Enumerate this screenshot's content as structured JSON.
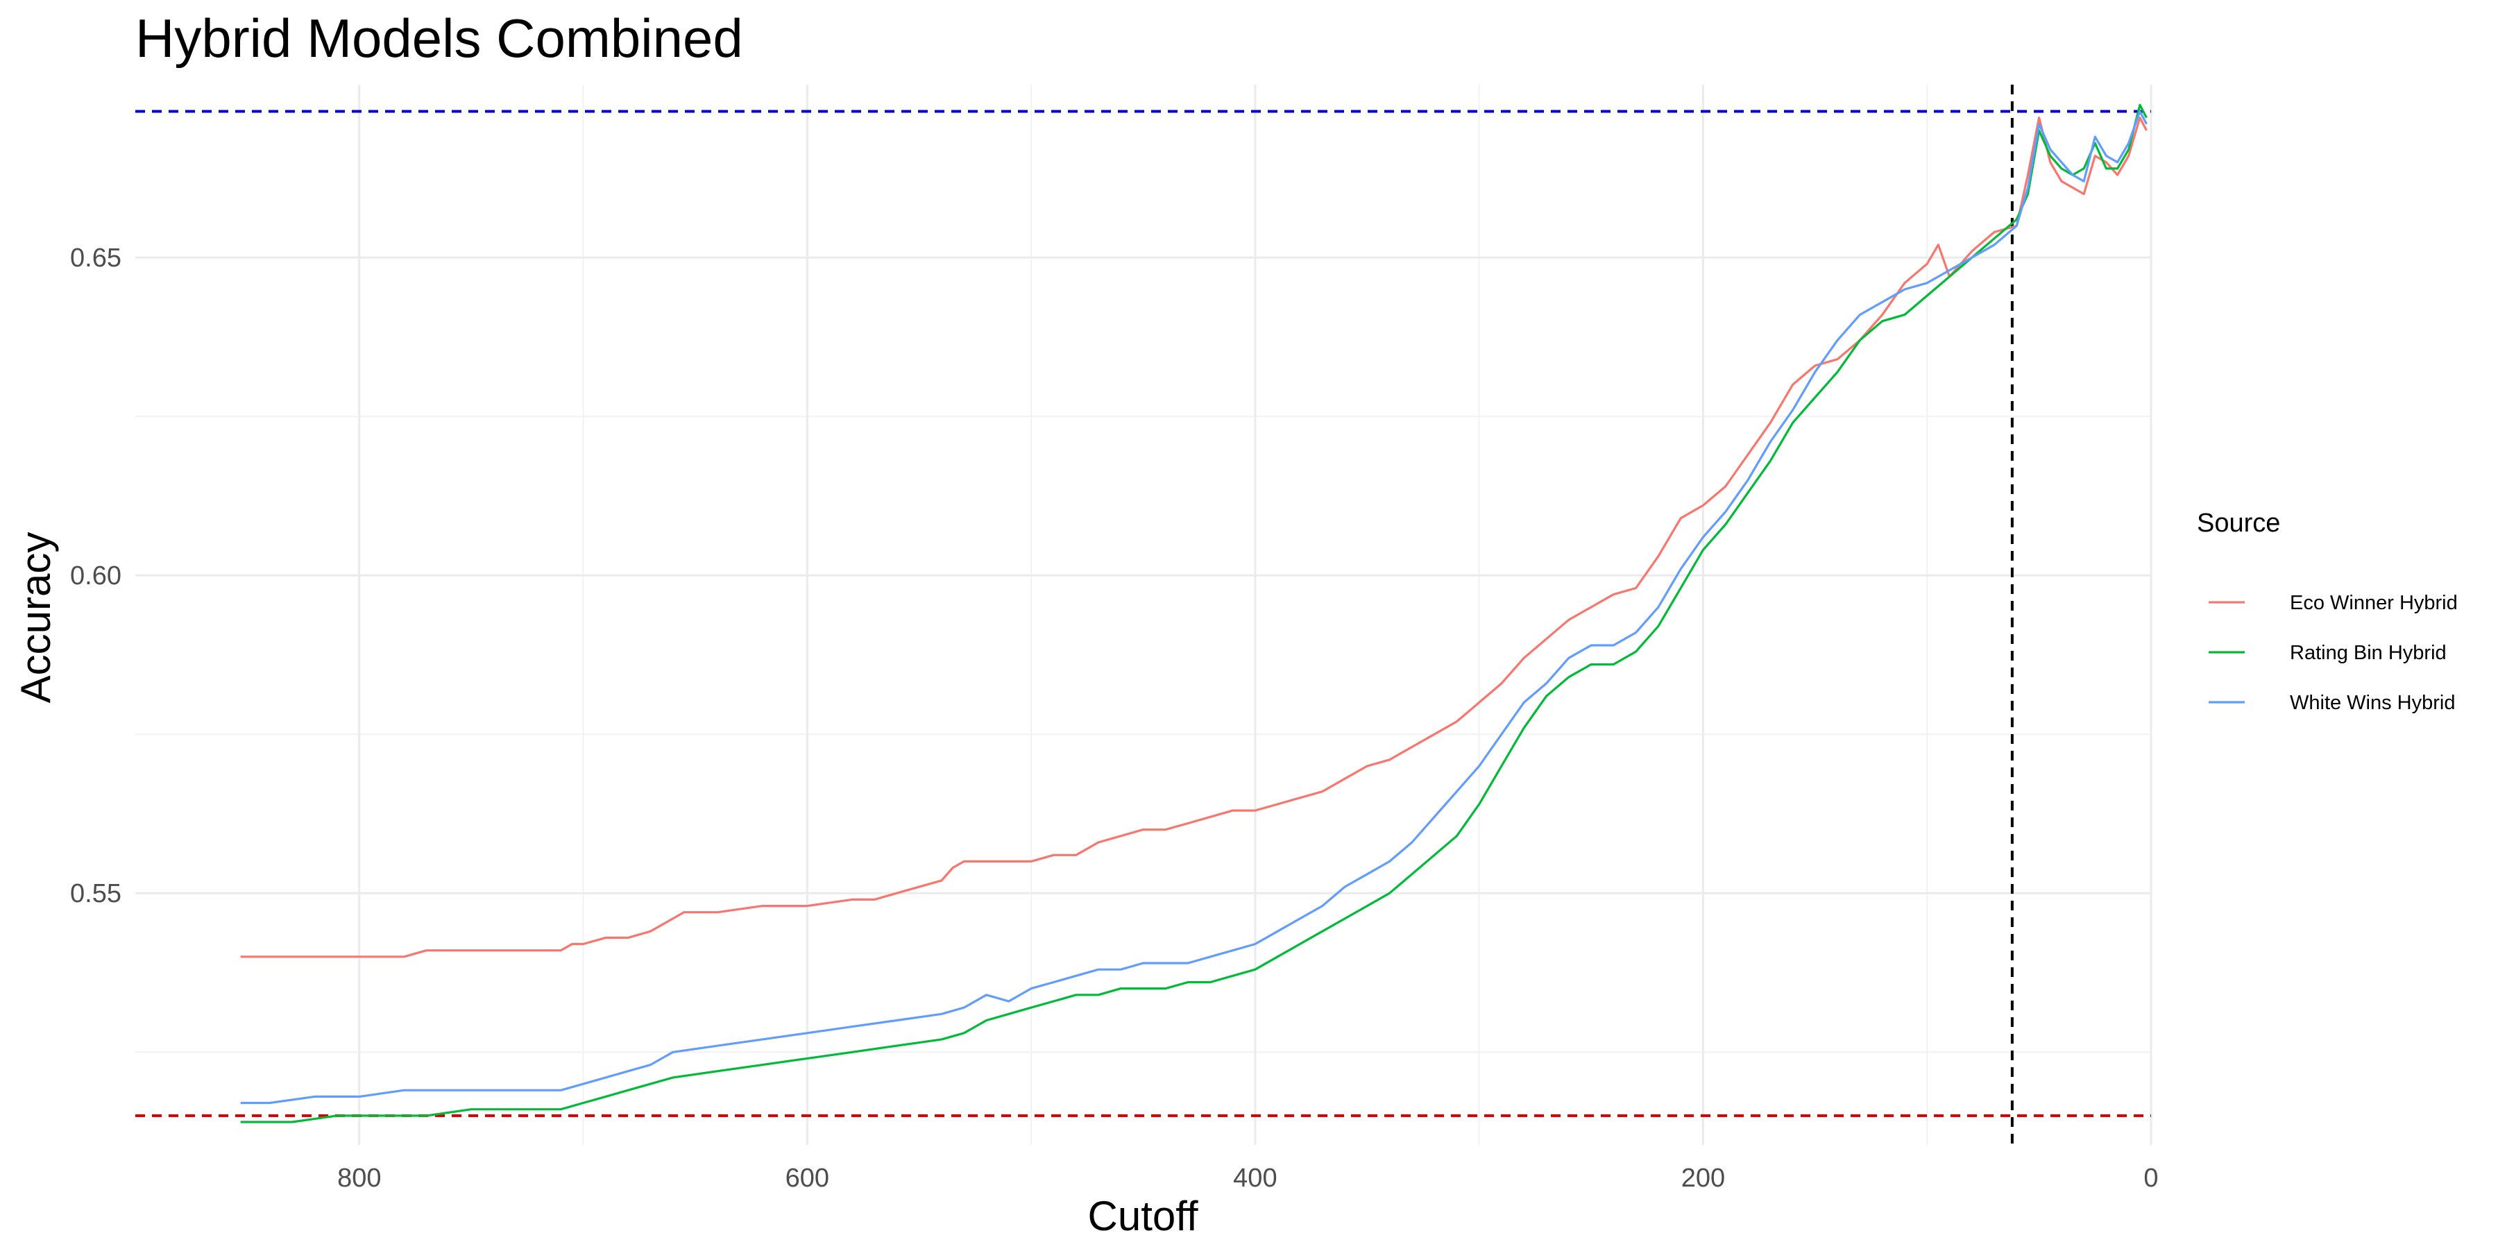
{
  "chart_data": {
    "type": "line",
    "title": "Hybrid Models Combined",
    "xlabel": "Cutoff",
    "ylabel": "Accuracy",
    "x_reversed": true,
    "xlim": [
      0,
      900
    ],
    "ylim": [
      0.5104,
      0.6772
    ],
    "x_ticks": [
      800,
      600,
      400,
      200,
      0
    ],
    "x_tick_labels": [
      "800",
      "600",
      "400",
      "200",
      "0"
    ],
    "x_minor_ticks": [
      700,
      500,
      300,
      100
    ],
    "y_ticks": [
      0.55,
      0.6,
      0.65
    ],
    "y_tick_labels": [
      "0.55",
      "0.60",
      "0.65"
    ],
    "y_minor_ticks": [
      0.525,
      0.575,
      0.625
    ],
    "legend": {
      "title": "Source",
      "position": "right",
      "entries": [
        "Eco Winner Hybrid",
        "Rating Bin Hybrid",
        "White Wins Hybrid"
      ]
    },
    "reference_lines": [
      {
        "orientation": "horizontal",
        "value": 0.673,
        "color": "#0000cc",
        "style": "dashed"
      },
      {
        "orientation": "horizontal",
        "value": 0.515,
        "color": "#cc0000",
        "style": "dashed"
      },
      {
        "orientation": "vertical",
        "value": 62,
        "color": "#000000",
        "style": "dashed"
      }
    ],
    "series": [
      {
        "name": "Eco Winner Hybrid",
        "color": "#F8766D",
        "x": [
          853,
          780,
          770,
          710,
          705,
          700,
          690,
          680,
          670,
          660,
          655,
          650,
          640,
          620,
          600,
          580,
          570,
          560,
          550,
          540,
          535,
          530,
          520,
          500,
          490,
          480,
          470,
          460,
          450,
          440,
          430,
          420,
          410,
          400,
          390,
          380,
          370,
          360,
          350,
          340,
          330,
          320,
          310,
          300,
          290,
          280,
          270,
          260,
          250,
          240,
          230,
          220,
          210,
          200,
          190,
          180,
          170,
          160,
          150,
          140,
          130,
          120,
          110,
          100,
          95,
          90,
          80,
          70,
          60,
          55,
          50,
          45,
          40,
          35,
          30,
          25,
          20,
          15,
          10,
          5,
          2
        ],
        "y": [
          0.54,
          0.54,
          0.541,
          0.541,
          0.542,
          0.542,
          0.543,
          0.543,
          0.544,
          0.546,
          0.547,
          0.547,
          0.547,
          0.548,
          0.548,
          0.549,
          0.549,
          0.55,
          0.551,
          0.552,
          0.554,
          0.555,
          0.555,
          0.555,
          0.556,
          0.556,
          0.558,
          0.559,
          0.56,
          0.56,
          0.561,
          0.562,
          0.563,
          0.563,
          0.564,
          0.565,
          0.566,
          0.568,
          0.57,
          0.571,
          0.573,
          0.575,
          0.577,
          0.58,
          0.583,
          0.587,
          0.59,
          0.593,
          0.595,
          0.597,
          0.598,
          0.603,
          0.609,
          0.611,
          0.614,
          0.619,
          0.624,
          0.63,
          0.633,
          0.634,
          0.637,
          0.641,
          0.646,
          0.649,
          0.652,
          0.647,
          0.651,
          0.654,
          0.655,
          0.663,
          0.672,
          0.665,
          0.662,
          0.661,
          0.66,
          0.666,
          0.665,
          0.663,
          0.666,
          0.672,
          0.67
        ]
      },
      {
        "name": "Rating Bin Hybrid",
        "color": "#00BA38",
        "x": [
          853,
          830,
          810,
          790,
          770,
          750,
          730,
          720,
          710,
          700,
          690,
          680,
          670,
          660,
          640,
          620,
          600,
          580,
          560,
          540,
          530,
          520,
          510,
          500,
          490,
          480,
          470,
          460,
          450,
          440,
          430,
          420,
          410,
          400,
          390,
          380,
          370,
          360,
          350,
          340,
          330,
          320,
          310,
          300,
          290,
          280,
          270,
          260,
          250,
          240,
          230,
          220,
          210,
          200,
          190,
          180,
          170,
          160,
          150,
          140,
          130,
          120,
          110,
          100,
          90,
          80,
          70,
          60,
          55,
          50,
          45,
          40,
          35,
          30,
          25,
          20,
          15,
          10,
          5,
          2
        ],
        "y": [
          0.514,
          0.514,
          0.515,
          0.515,
          0.515,
          0.516,
          0.516,
          0.516,
          0.516,
          0.517,
          0.518,
          0.519,
          0.52,
          0.521,
          0.522,
          0.523,
          0.524,
          0.525,
          0.526,
          0.527,
          0.528,
          0.53,
          0.531,
          0.532,
          0.533,
          0.534,
          0.534,
          0.535,
          0.535,
          0.535,
          0.536,
          0.536,
          0.537,
          0.538,
          0.54,
          0.542,
          0.544,
          0.546,
          0.548,
          0.55,
          0.553,
          0.556,
          0.559,
          0.564,
          0.57,
          0.576,
          0.581,
          0.584,
          0.586,
          0.586,
          0.588,
          0.592,
          0.598,
          0.604,
          0.608,
          0.613,
          0.618,
          0.624,
          0.628,
          0.632,
          0.637,
          0.64,
          0.641,
          0.644,
          0.647,
          0.65,
          0.653,
          0.656,
          0.66,
          0.67,
          0.666,
          0.664,
          0.663,
          0.664,
          0.668,
          0.664,
          0.664,
          0.667,
          0.674,
          0.672
        ]
      },
      {
        "name": "White Wins Hybrid",
        "color": "#619CFF",
        "x": [
          853,
          840,
          820,
          800,
          780,
          760,
          740,
          720,
          710,
          700,
          690,
          680,
          670,
          660,
          640,
          620,
          600,
          580,
          560,
          540,
          530,
          520,
          510,
          500,
          490,
          480,
          470,
          460,
          450,
          440,
          430,
          420,
          410,
          400,
          390,
          380,
          370,
          360,
          350,
          340,
          330,
          320,
          310,
          300,
          290,
          280,
          270,
          260,
          250,
          240,
          230,
          220,
          210,
          200,
          190,
          180,
          170,
          160,
          150,
          140,
          130,
          120,
          110,
          100,
          90,
          80,
          70,
          60,
          55,
          50,
          45,
          40,
          35,
          30,
          25,
          20,
          15,
          10,
          5,
          2
        ],
        "y": [
          0.517,
          0.517,
          0.518,
          0.518,
          0.519,
          0.519,
          0.519,
          0.519,
          0.519,
          0.52,
          0.521,
          0.522,
          0.523,
          0.525,
          0.526,
          0.527,
          0.528,
          0.529,
          0.53,
          0.531,
          0.532,
          0.534,
          0.533,
          0.535,
          0.536,
          0.537,
          0.538,
          0.538,
          0.539,
          0.539,
          0.539,
          0.54,
          0.541,
          0.542,
          0.544,
          0.546,
          0.548,
          0.551,
          0.553,
          0.555,
          0.558,
          0.562,
          0.566,
          0.57,
          0.575,
          0.58,
          0.583,
          0.587,
          0.589,
          0.589,
          0.591,
          0.595,
          0.601,
          0.606,
          0.61,
          0.615,
          0.621,
          0.626,
          0.632,
          0.637,
          0.641,
          0.643,
          0.645,
          0.646,
          0.648,
          0.65,
          0.652,
          0.655,
          0.661,
          0.671,
          0.667,
          0.665,
          0.663,
          0.662,
          0.669,
          0.666,
          0.665,
          0.668,
          0.673,
          0.671
        ]
      }
    ]
  }
}
